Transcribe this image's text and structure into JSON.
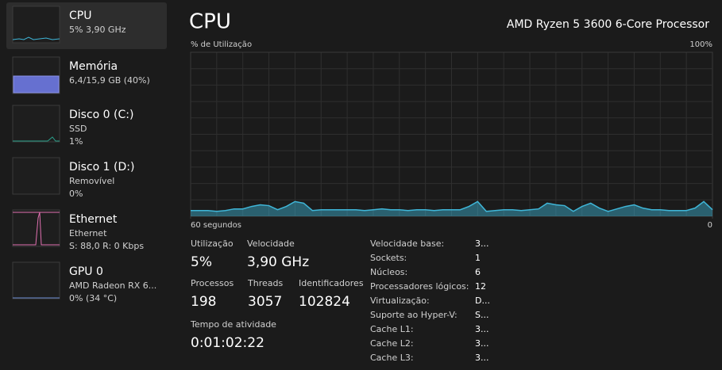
{
  "sidebar": [
    {
      "title": "CPU",
      "lines": [
        "5% 3,90 GHz"
      ]
    },
    {
      "title": "Memória",
      "lines": [
        "6,4/15,9 GB (40%)"
      ]
    },
    {
      "title": "Disco 0 (C:)",
      "lines": [
        "SSD",
        "1%"
      ]
    },
    {
      "title": "Disco 1 (D:)",
      "lines": [
        "Removível",
        "0%"
      ]
    },
    {
      "title": "Ethernet",
      "lines": [
        "Ethernet",
        "S: 88,0 R: 0 Kbps"
      ]
    },
    {
      "title": "GPU 0",
      "lines": [
        "AMD Radeon RX 6...",
        "0% (34 °C)"
      ]
    }
  ],
  "header": {
    "title": "CPU",
    "processor": "AMD Ryzen 5 3600 6-Core Processor"
  },
  "chart_data": {
    "type": "area",
    "y_label": "% de Utilização",
    "color": "#3fb6d8",
    "ylim": [
      0,
      100
    ],
    "yticks": [
      {
        "value": 100,
        "label": "100%"
      }
    ],
    "xlim": [
      60,
      0
    ],
    "xticks": [
      {
        "value": 60,
        "label": "60 segundos"
      },
      0
    ],
    "x": [
      60,
      59,
      58,
      57,
      56,
      55,
      54,
      53,
      52,
      51,
      50,
      49,
      48,
      47,
      46,
      45,
      44,
      43,
      42,
      41,
      40,
      39,
      38,
      37,
      36,
      35,
      34,
      33,
      32,
      31,
      30,
      29,
      28,
      27,
      26,
      25,
      24,
      23,
      22,
      21,
      20,
      19,
      18,
      17,
      16,
      15,
      14,
      13,
      12,
      11,
      10,
      9,
      8,
      7,
      6,
      5,
      4,
      3,
      2,
      1,
      0
    ],
    "values": [
      3.5,
      3.5,
      3.5,
      3,
      3.5,
      4.5,
      4.5,
      6,
      7,
      6.5,
      4,
      6,
      9,
      8,
      3.5,
      4,
      4,
      4,
      4,
      4,
      3.5,
      4,
      4.5,
      4,
      4,
      3.5,
      4,
      4,
      3.5,
      4,
      4,
      4,
      6,
      9,
      3,
      3.5,
      4,
      4,
      3.5,
      4,
      4.5,
      8,
      7,
      6.5,
      3,
      6,
      8,
      5,
      3,
      4.5,
      6,
      7,
      5,
      4,
      4,
      3.5,
      3.5,
      3.5,
      5,
      9,
      4
    ]
  },
  "stats": [
    {
      "label": "Utilização",
      "value": "5%"
    },
    {
      "label": "Velocidade",
      "value": "3,90 GHz"
    },
    {
      "label": "Processos",
      "value": "198"
    },
    {
      "label": "Threads",
      "value": "3057"
    },
    {
      "label": "Identificadores",
      "value": "102824"
    },
    {
      "label": "Tempo de atividade",
      "value": "0:01:02:22"
    }
  ],
  "details": [
    {
      "label": "Velocidade base:",
      "value": "3..."
    },
    {
      "label": "Sockets:",
      "value": "1"
    },
    {
      "label": "Núcleos:",
      "value": "6"
    },
    {
      "label": "Processadores lógicos:",
      "value": "12"
    },
    {
      "label": "Virtualização:",
      "value": "D..."
    },
    {
      "label": "Suporte ao Hyper-V:",
      "value": "S..."
    },
    {
      "label": "Cache L1:",
      "value": "3..."
    },
    {
      "label": "Cache L2:",
      "value": "3..."
    },
    {
      "label": "Cache L3:",
      "value": "3..."
    }
  ]
}
